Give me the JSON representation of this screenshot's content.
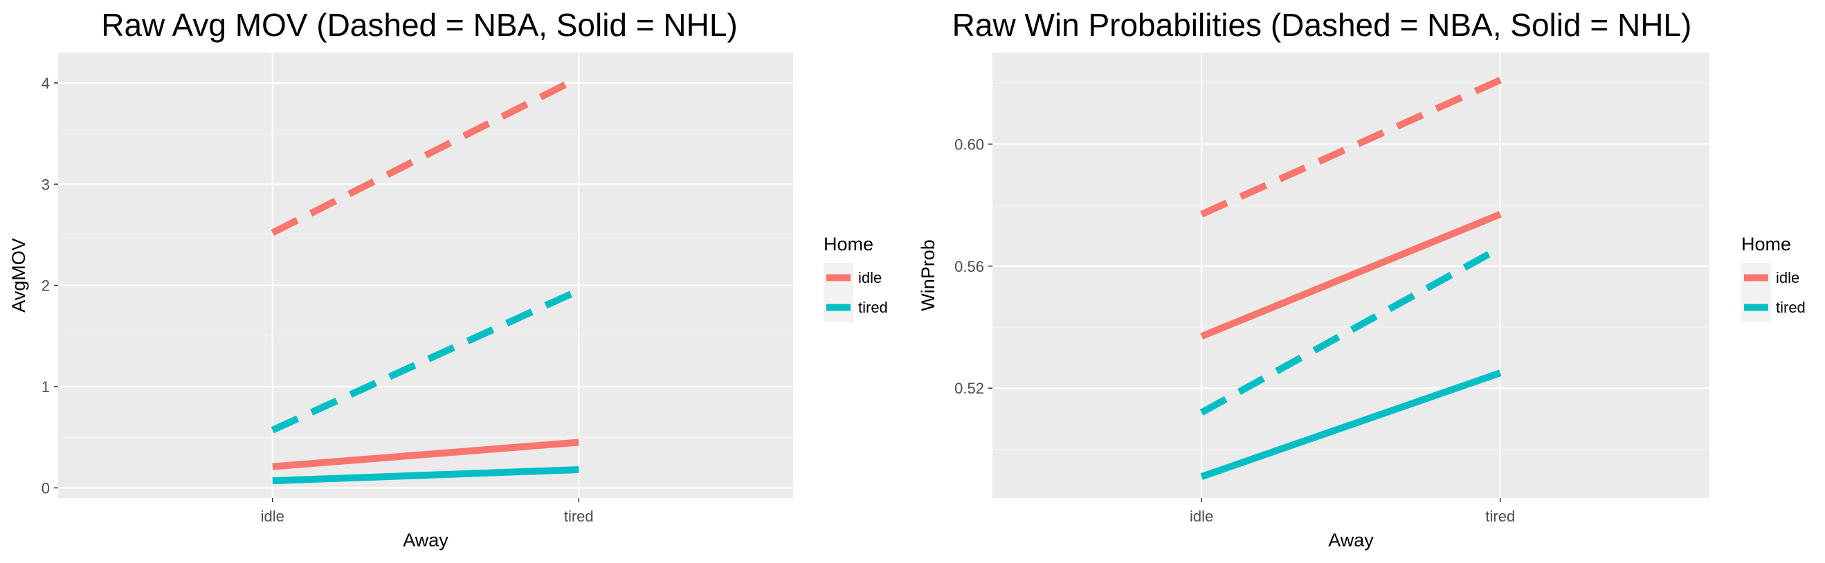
{
  "chart_data": [
    {
      "type": "line",
      "title": "Raw Avg MOV (Dashed = NBA, Solid = NHL)",
      "xlabel": "Away",
      "ylabel": "AvgMOV",
      "categories": [
        "idle",
        "tired"
      ],
      "ylim": [
        -0.1,
        4.3
      ],
      "yticks": [
        0,
        1,
        2,
        3,
        4
      ],
      "grid": true,
      "legend": {
        "title": "Home",
        "position": "right",
        "entries": [
          "idle",
          "tired"
        ]
      },
      "colors": {
        "idle": "#F8766D",
        "tired": "#00BFC4"
      },
      "series": [
        {
          "group": "idle",
          "dashed": true,
          "color": "#F8766D",
          "values": [
            2.52,
            4.05
          ]
        },
        {
          "group": "tired",
          "dashed": true,
          "color": "#00BFC4",
          "values": [
            0.57,
            1.95
          ]
        },
        {
          "group": "idle",
          "dashed": false,
          "color": "#F8766D",
          "values": [
            0.21,
            0.45
          ]
        },
        {
          "group": "tired",
          "dashed": false,
          "color": "#00BFC4",
          "values": [
            0.07,
            0.18
          ]
        }
      ]
    },
    {
      "type": "line",
      "title": "Raw Win Probabilities (Dashed = NBA, Solid = NHL)",
      "xlabel": "Away",
      "ylabel": "WinProb",
      "categories": [
        "idle",
        "tired"
      ],
      "ylim": [
        0.484,
        0.63
      ],
      "yticks": [
        0.52,
        0.56,
        0.6
      ],
      "ytick_labels": [
        "0.52",
        "0.56",
        "0.60"
      ],
      "grid": true,
      "legend": {
        "title": "Home",
        "position": "right",
        "entries": [
          "idle",
          "tired"
        ]
      },
      "colors": {
        "idle": "#F8766D",
        "tired": "#00BFC4"
      },
      "series": [
        {
          "group": "idle",
          "dashed": true,
          "color": "#F8766D",
          "values": [
            0.577,
            0.621
          ]
        },
        {
          "group": "tired",
          "dashed": true,
          "color": "#00BFC4",
          "values": [
            0.512,
            0.566
          ]
        },
        {
          "group": "idle",
          "dashed": false,
          "color": "#F8766D",
          "values": [
            0.537,
            0.577
          ]
        },
        {
          "group": "tired",
          "dashed": false,
          "color": "#00BFC4",
          "values": [
            0.491,
            0.525
          ]
        }
      ]
    }
  ]
}
